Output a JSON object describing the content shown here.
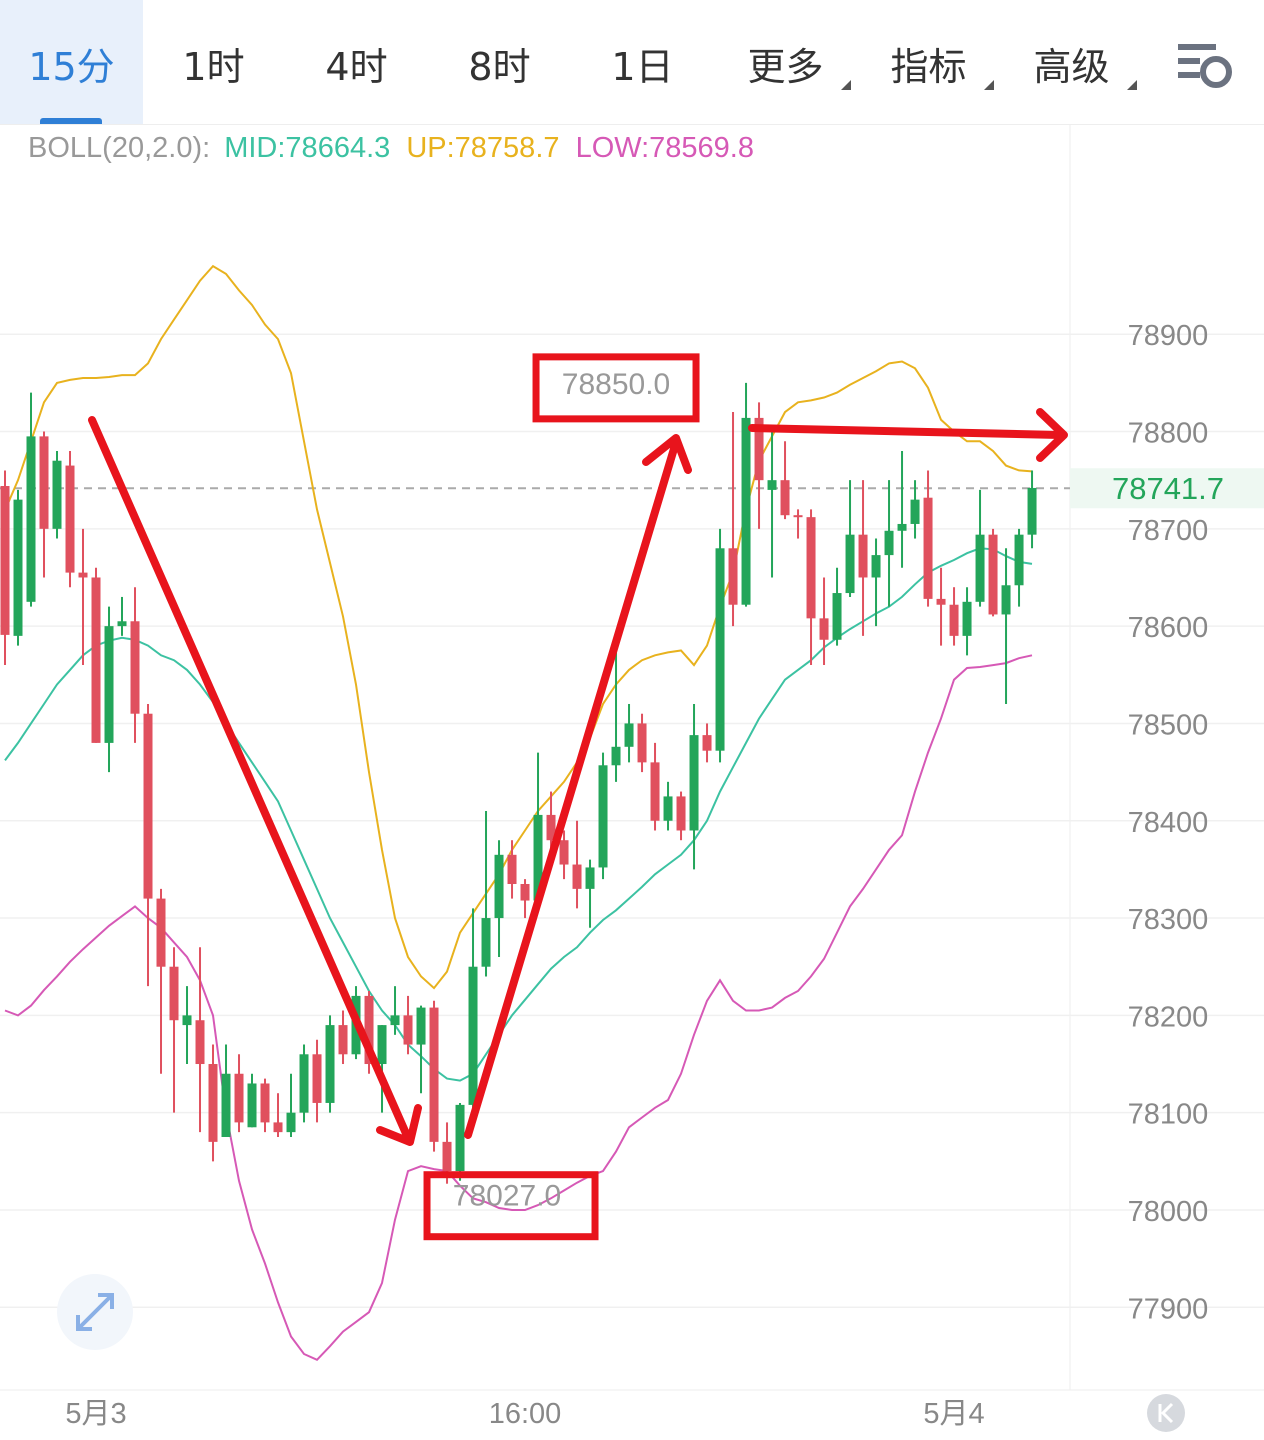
{
  "tabs": [
    "15分",
    "1时",
    "4时",
    "8时",
    "1日",
    "更多",
    "指标",
    "高级"
  ],
  "chart_data": {
    "type": "candlestick",
    "indicator": {
      "name": "BOLL(20,2.0):",
      "mid": "MID:78664.3",
      "up": "UP:78758.7",
      "low": "LOW:78569.8"
    },
    "ylim": [
      77815,
      79115
    ],
    "yticks": [
      77900,
      78000,
      78100,
      78200,
      78300,
      78400,
      78500,
      78600,
      78700,
      78800,
      78900
    ],
    "xlim": [
      -0.385,
      81.92
    ],
    "xticks": [
      {
        "value": 7,
        "label": "5月3"
      },
      {
        "value": 40,
        "label": "16:00"
      },
      {
        "value": 73,
        "label": "5月4"
      }
    ],
    "last_price": 78741.7,
    "annotations": [
      {
        "value": 78850,
        "label": "78850.0",
        "x": 57
      },
      {
        "value": 78027,
        "label": "78027.0",
        "x": 34
      }
    ],
    "up_color": "#23a55a",
    "down_color": "#e0505e",
    "open": [
      78744,
      78590,
      78625,
      78795,
      78700,
      78765,
      78655,
      78650,
      78480,
      78600,
      78605,
      78510,
      78320,
      78250,
      78190,
      78195,
      78150,
      78075,
      78140,
      78085,
      78130,
      78090,
      78080,
      78100,
      78160,
      78110,
      78190,
      78160,
      78220,
      78150,
      78190,
      78200,
      78170,
      78208,
      78070,
      78040,
      78108,
      78250,
      78300,
      78365,
      78335,
      78318,
      78406,
      78380,
      78355,
      78330,
      78352,
      78457,
      78476,
      78500,
      78460,
      78400,
      78425,
      78390,
      78488,
      78472,
      78680,
      78622,
      78814,
      78740,
      78750,
      78714,
      78712,
      78608,
      78586,
      78634,
      78694,
      78650,
      78673,
      78698,
      78705,
      78732,
      78628,
      78622,
      78590,
      78625,
      78694,
      78612,
      78642,
      78694
    ],
    "high": [
      78760,
      78740,
      78840,
      78800,
      78780,
      78780,
      78700,
      78660,
      78620,
      78630,
      78640,
      78520,
      78330,
      78270,
      78230,
      78270,
      78170,
      78170,
      78160,
      78140,
      78135,
      78120,
      78140,
      78170,
      78175,
      78200,
      78205,
      78230,
      78225,
      78190,
      78230,
      78220,
      78210,
      78215,
      78090,
      78110,
      78310,
      78410,
      78380,
      78380,
      78340,
      78470,
      78430,
      78390,
      78400,
      78360,
      78470,
      78580,
      78520,
      78510,
      78480,
      78440,
      78430,
      78520,
      78500,
      78700,
      78820,
      78850,
      78830,
      78800,
      78790,
      78720,
      78720,
      78650,
      78660,
      78750,
      78750,
      78690,
      78750,
      78780,
      78750,
      78760,
      78660,
      78640,
      78640,
      78740,
      78700,
      78680,
      78700,
      78760
    ],
    "low": [
      78560,
      78580,
      78620,
      78650,
      78690,
      78640,
      78560,
      78480,
      78450,
      78590,
      78480,
      78230,
      78140,
      78100,
      78150,
      78080,
      78050,
      78075,
      78080,
      78085,
      78080,
      78075,
      78075,
      78090,
      78090,
      78100,
      78150,
      78155,
      78140,
      78100,
      78180,
      78160,
      78120,
      78060,
      78027,
      78030,
      78100,
      78240,
      78260,
      78320,
      78300,
      78310,
      78370,
      78340,
      78310,
      78290,
      78340,
      78440,
      78460,
      78450,
      78390,
      78390,
      78380,
      78350,
      78460,
      78460,
      78600,
      78620,
      78700,
      78650,
      78710,
      78690,
      78560,
      78560,
      78580,
      78630,
      78590,
      78600,
      78620,
      78660,
      78690,
      78620,
      78580,
      78580,
      78570,
      78620,
      78610,
      78520,
      78620,
      78680
    ],
    "close": [
      78591,
      78730,
      78795,
      78700,
      78770,
      78655,
      78650,
      78480,
      78600,
      78605,
      78510,
      78320,
      78250,
      78195,
      78200,
      78150,
      78070,
      78140,
      78090,
      78130,
      78090,
      78080,
      78100,
      78160,
      78110,
      78190,
      78160,
      78220,
      78150,
      78190,
      78200,
      78170,
      78208,
      78070,
      78040,
      78108,
      78250,
      78300,
      78365,
      78335,
      78318,
      78406,
      78380,
      78355,
      78330,
      78352,
      78457,
      78476,
      78500,
      78460,
      78400,
      78425,
      78390,
      78488,
      78472,
      78680,
      78622,
      78814,
      78750,
      78750,
      78714,
      78712,
      78608,
      78586,
      78634,
      78694,
      78650,
      78673,
      78698,
      78705,
      78730,
      78628,
      78622,
      78590,
      78625,
      78694,
      78612,
      78642,
      78694,
      78742
    ],
    "series": [
      {
        "name": "UP",
        "color": "#e8b21e",
        "values": [
          78719,
          78750,
          78790,
          78830,
          78850,
          78853,
          78855,
          78855,
          78856,
          78858,
          78858,
          78870,
          78895,
          78915,
          78935,
          78955,
          78970,
          78962,
          78945,
          78930,
          78910,
          78895,
          78860,
          78790,
          78720,
          78665,
          78610,
          78540,
          78450,
          78370,
          78300,
          78260,
          78240,
          78228,
          78245,
          78285,
          78305,
          78325,
          78345,
          78370,
          78390,
          78410,
          78425,
          78440,
          78460,
          78485,
          78520,
          78540,
          78555,
          78565,
          78570,
          78573,
          78575,
          78560,
          78580,
          78620,
          78655,
          78720,
          78770,
          78795,
          78820,
          78830,
          78832,
          78835,
          78840,
          78848,
          78855,
          78862,
          78870,
          78872,
          78865,
          78845,
          78812,
          78800,
          78790,
          78790,
          78780,
          78765,
          78760,
          78759
        ]
      },
      {
        "name": "MID",
        "color": "#3cc2a2",
        "values": [
          78462,
          78480,
          78500,
          78520,
          78540,
          78555,
          78570,
          78580,
          78585,
          78588,
          78586,
          78580,
          78570,
          78565,
          78555,
          78540,
          78522,
          78500,
          78480,
          78460,
          78440,
          78420,
          78390,
          78360,
          78330,
          78300,
          78275,
          78250,
          78225,
          78205,
          78190,
          78170,
          78158,
          78145,
          78135,
          78133,
          78140,
          78160,
          78180,
          78200,
          78216,
          78232,
          78248,
          78260,
          78270,
          78285,
          78298,
          78308,
          78320,
          78332,
          78345,
          78355,
          78365,
          78380,
          78400,
          78430,
          78455,
          78480,
          78505,
          78525,
          78545,
          78555,
          78565,
          78578,
          78588,
          78597,
          78605,
          78613,
          78620,
          78630,
          78643,
          78655,
          78662,
          78668,
          78675,
          78680,
          78679,
          78672,
          78666,
          78664
        ]
      },
      {
        "name": "LOW",
        "color": "#d659b6",
        "values": [
          78205,
          78200,
          78210,
          78226,
          78240,
          78255,
          78268,
          78280,
          78292,
          78302,
          78312,
          78300,
          78290,
          78275,
          78260,
          78236,
          78200,
          78100,
          78030,
          77980,
          77945,
          77905,
          77870,
          77852,
          77846,
          77860,
          77875,
          77885,
          77895,
          77925,
          77990,
          78040,
          78045,
          78042,
          78040,
          78025,
          78012,
          78008,
          78002,
          78000,
          78000,
          78005,
          78012,
          78020,
          78028,
          78035,
          78040,
          78060,
          78085,
          78095,
          78105,
          78113,
          78140,
          78180,
          78215,
          78236,
          78215,
          78205,
          78205,
          78208,
          78218,
          78225,
          78240,
          78258,
          78285,
          78312,
          78330,
          78350,
          78370,
          78385,
          78430,
          78470,
          78505,
          78545,
          78557,
          78558,
          78560,
          78562,
          78567,
          78570
        ]
      }
    ]
  }
}
